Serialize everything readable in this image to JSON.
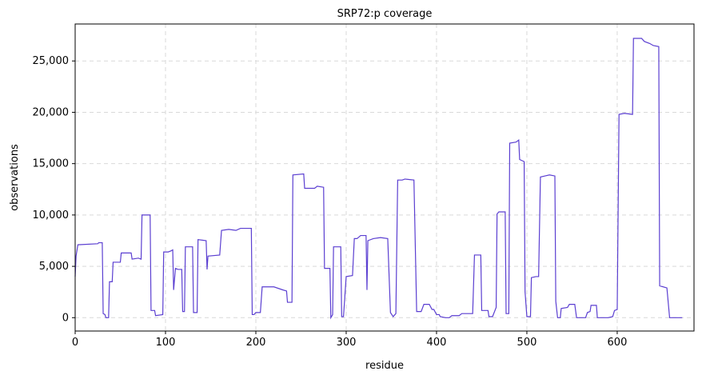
{
  "chart_data": {
    "type": "line",
    "title": "SRP72:p coverage",
    "x_label": "residue",
    "y_label": "observations",
    "x": [
      0,
      1,
      3,
      25,
      26,
      30,
      31,
      33,
      34,
      37,
      38,
      41,
      42,
      50,
      51,
      62,
      63,
      70,
      73,
      74,
      83,
      84,
      88,
      89,
      97,
      98,
      103,
      106,
      108,
      109,
      111,
      114,
      118,
      119,
      121,
      122,
      130,
      131,
      135,
      136,
      145,
      146,
      147,
      160,
      162,
      170,
      178,
      183,
      195,
      196,
      198,
      200,
      205,
      207,
      220,
      230,
      234,
      235,
      240,
      241,
      253,
      254,
      265,
      268,
      275,
      276,
      282,
      283,
      285,
      286,
      294,
      295,
      297,
      300,
      307,
      309,
      312,
      316,
      322,
      323,
      324,
      330,
      338,
      346,
      349,
      352,
      355,
      357,
      362,
      365,
      375,
      378,
      383,
      386,
      392,
      395,
      397,
      400,
      403,
      404,
      410,
      414,
      417,
      425,
      428,
      440,
      442,
      449,
      450,
      457,
      458,
      462,
      466,
      467,
      469,
      476,
      477,
      480,
      481,
      488,
      491,
      492,
      497,
      498,
      500,
      504,
      505,
      510,
      513,
      515,
      520,
      525,
      531,
      532,
      534,
      537,
      538,
      545,
      547,
      553,
      555,
      565,
      567,
      570,
      571,
      577,
      578,
      590,
      595,
      597,
      600,
      602,
      608,
      617,
      618,
      627,
      630,
      636,
      640,
      646,
      647,
      655,
      658,
      672
    ],
    "series": [
      {
        "name": "coverage",
        "color": "#5b3fd1",
        "values": [
          4000,
          6000,
          7100,
          7200,
          7300,
          7300,
          400,
          300,
          0,
          0,
          3500,
          3500,
          5400,
          5400,
          6300,
          6300,
          5700,
          5800,
          5700,
          10000,
          10000,
          700,
          700,
          200,
          300,
          6400,
          6400,
          6500,
          6600,
          2700,
          4800,
          4700,
          4700,
          600,
          600,
          6900,
          6900,
          500,
          500,
          7600,
          7500,
          4700,
          6000,
          6100,
          8500,
          8600,
          8500,
          8700,
          8700,
          300,
          300,
          500,
          500,
          3000,
          3000,
          2700,
          2600,
          1500,
          1500,
          13900,
          14000,
          12600,
          12600,
          12800,
          12700,
          4800,
          4800,
          0,
          300,
          6900,
          6900,
          100,
          100,
          4000,
          4100,
          7700,
          7700,
          8000,
          8000,
          2700,
          7500,
          7700,
          7800,
          7700,
          500,
          100,
          400,
          13400,
          13400,
          13500,
          13400,
          600,
          600,
          1300,
          1300,
          800,
          800,
          300,
          300,
          100,
          0,
          0,
          200,
          200,
          400,
          400,
          6100,
          6100,
          700,
          700,
          100,
          100,
          1000,
          10100,
          10300,
          10300,
          400,
          400,
          17000,
          17100,
          17300,
          15400,
          15200,
          2500,
          100,
          100,
          3900,
          4000,
          4000,
          13700,
          13800,
          13900,
          13800,
          1600,
          0,
          0,
          900,
          1000,
          1300,
          1300,
          0,
          0,
          500,
          600,
          1200,
          1200,
          0,
          0,
          100,
          700,
          800,
          19800,
          19900,
          19800,
          27200,
          27200,
          26900,
          26700,
          26500,
          26400,
          3100,
          2900,
          0,
          0
        ]
      }
    ],
    "xlim": [
      0,
      685
    ],
    "ylim": [
      -1300,
      28600
    ],
    "xticks": [
      0,
      100,
      200,
      300,
      400,
      500,
      600
    ],
    "yticks": [
      0,
      {
        "value": 5000,
        "label": "5,000"
      },
      {
        "value": 10000,
        "label": "10,000"
      },
      {
        "value": 15000,
        "label": "15,000"
      },
      {
        "value": 20000,
        "label": "20,000"
      },
      {
        "value": 25000,
        "label": "25,000"
      }
    ],
    "grid": true
  }
}
